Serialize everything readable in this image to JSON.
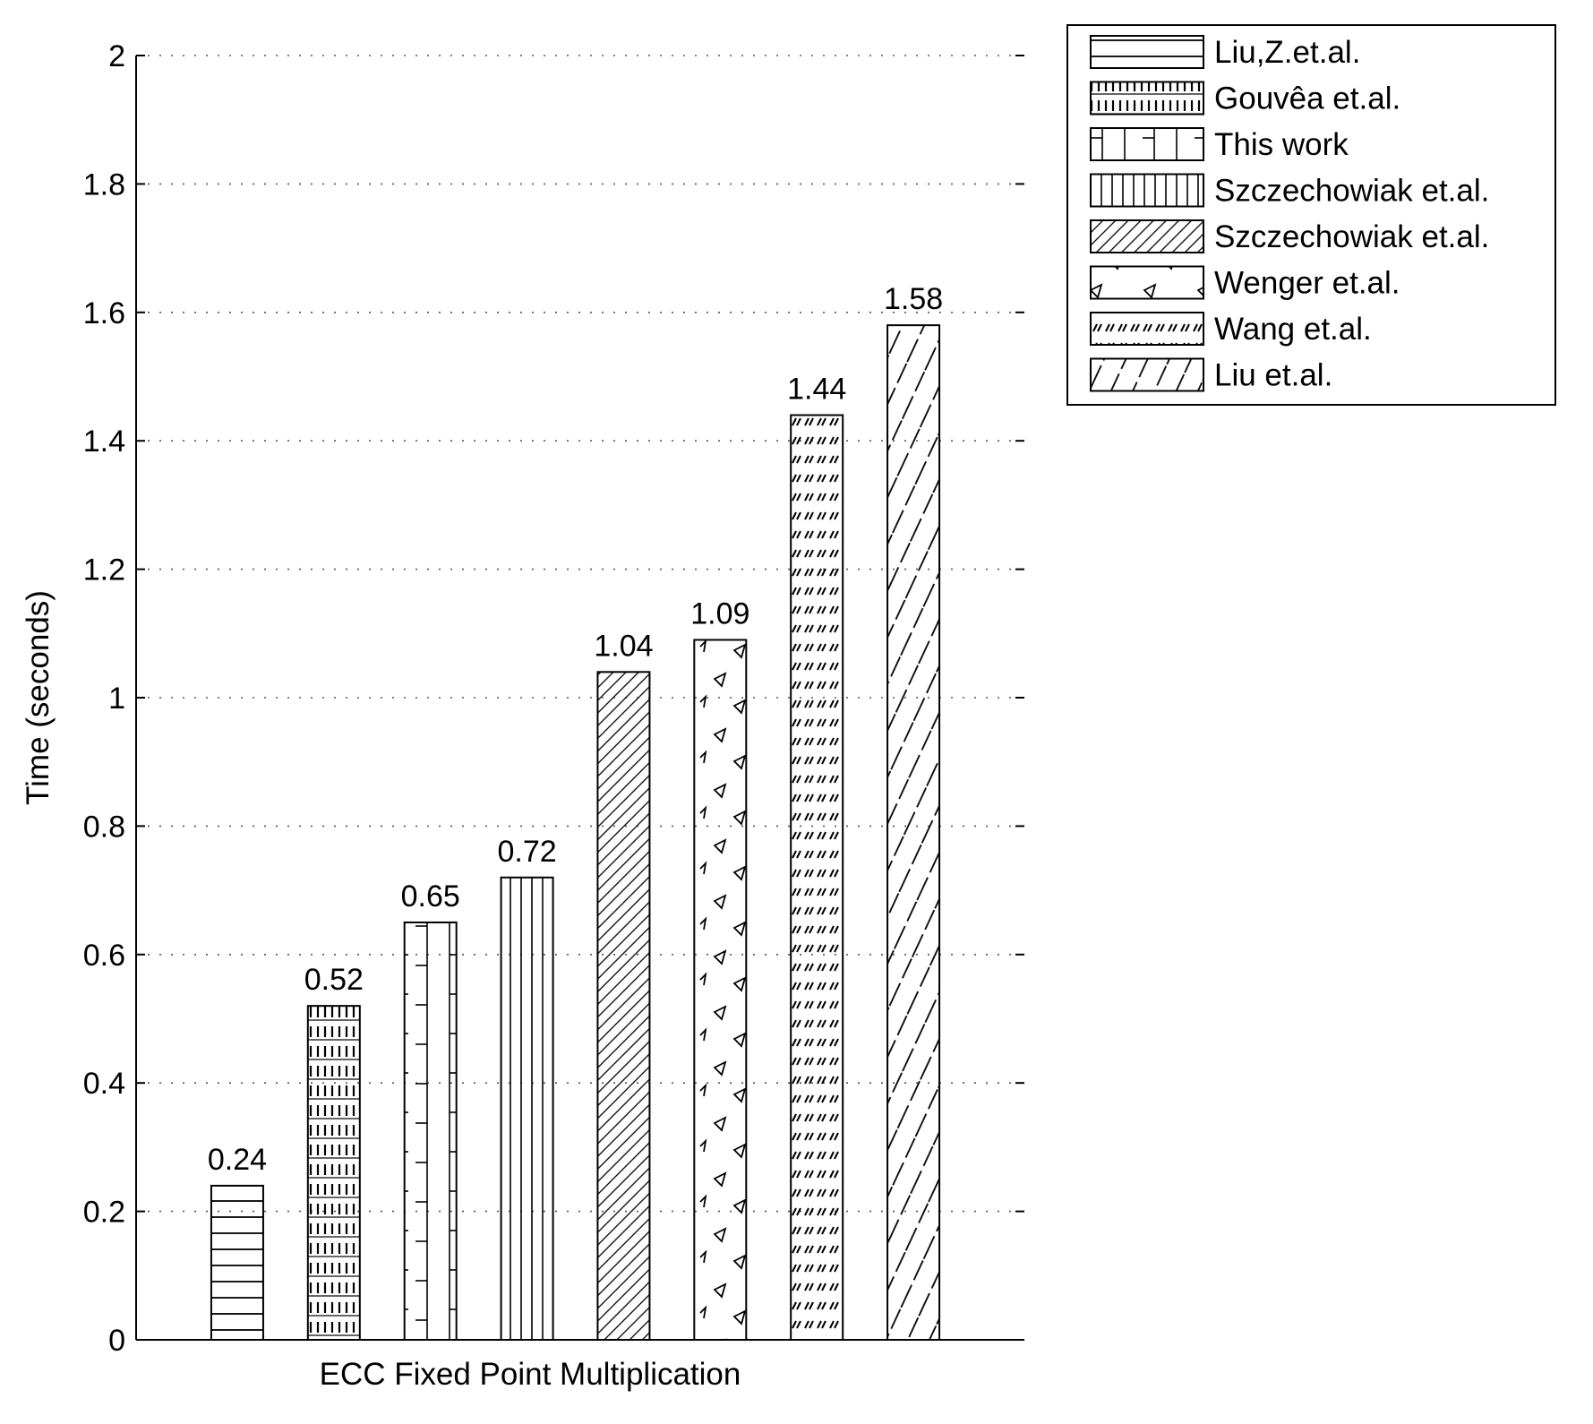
{
  "chart_data": {
    "type": "bar",
    "title": "",
    "xlabel": "ECC Fixed Point Multiplication",
    "ylabel": "Time (seconds)",
    "ylim": [
      0,
      2
    ],
    "yticks": [
      0,
      0.2,
      0.4,
      0.6,
      0.8,
      1,
      1.2,
      1.4,
      1.6,
      1.8,
      2
    ],
    "ytick_labels": [
      "0",
      "0.2",
      "0.4",
      "0.6",
      "0.8",
      "1",
      "1.2",
      "1.4",
      "1.6",
      "1.8",
      "2"
    ],
    "grid": "horizontal dotted",
    "legend_position": "outside top-right",
    "series": [
      {
        "name": "Liu,Z.et.al.",
        "value": 0.24,
        "label": "0.24",
        "pattern": "horizontal-lines"
      },
      {
        "name": "Gouvêa et.al.",
        "value": 0.52,
        "label": "0.52",
        "pattern": "dense-dashes"
      },
      {
        "name": "This work",
        "value": 0.65,
        "label": "0.65",
        "pattern": "grid-ticks"
      },
      {
        "name": "Szczechowiak et.al.",
        "value": 0.72,
        "label": "0.72",
        "pattern": "vertical-lines"
      },
      {
        "name": "Szczechowiak et.al.",
        "value": 1.04,
        "label": "1.04",
        "pattern": "diagonal-backslash"
      },
      {
        "name": "Wenger et.al.",
        "value": 1.09,
        "label": "1.09",
        "pattern": "triangles"
      },
      {
        "name": "Wang et.al.",
        "value": 1.44,
        "label": "1.44",
        "pattern": "small-slashes"
      },
      {
        "name": "Liu et.al.",
        "value": 1.58,
        "label": "1.58",
        "pattern": "diagonal-slash"
      }
    ]
  }
}
